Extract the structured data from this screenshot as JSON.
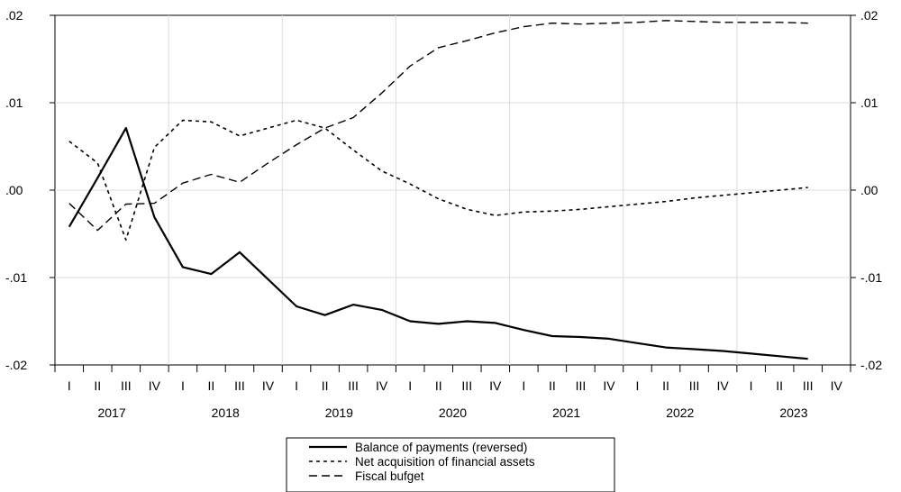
{
  "chart_data": {
    "type": "line",
    "title": "",
    "xlabel": "",
    "ylabel": "",
    "ylim": [
      -0.02,
      0.02
    ],
    "y_ticks": [
      ".02",
      ".01",
      ".00",
      "-.01",
      "-.02"
    ],
    "y_tick_values": [
      0.02,
      0.01,
      0.0,
      -0.01,
      -0.02
    ],
    "grid": true,
    "legend_position": "bottom-center",
    "quarter_labels": [
      "I",
      "II",
      "III",
      "IV",
      "I",
      "II",
      "III",
      "IV",
      "I",
      "II",
      "III",
      "IV",
      "I",
      "II",
      "III",
      "IV",
      "I",
      "II",
      "III",
      "IV",
      "I",
      "II",
      "III",
      "IV",
      "I",
      "II",
      "III",
      "IV"
    ],
    "years": [
      "2017",
      "2018",
      "2019",
      "2020",
      "2021",
      "2022",
      "2023"
    ],
    "series": [
      {
        "name": "Balance of payments (reversed)",
        "style": "solid",
        "color": "#000000",
        "values": [
          -0.0042,
          0.0014,
          0.0071,
          -0.0031,
          -0.0088,
          -0.0096,
          -0.0071,
          -0.0102,
          -0.0133,
          -0.0143,
          -0.0131,
          -0.0137,
          -0.015,
          -0.0153,
          -0.015,
          -0.0152,
          -0.016,
          -0.0167,
          -0.0168,
          -0.017,
          -0.0175,
          -0.018,
          -0.0182,
          -0.0184,
          -0.0187,
          -0.019,
          -0.0193
        ]
      },
      {
        "name": "Net acquisition of financial assets",
        "style": "dotted",
        "color": "#000000",
        "values": [
          0.0056,
          0.0031,
          -0.0057,
          0.0049,
          0.008,
          0.0078,
          0.0062,
          0.0071,
          0.008,
          0.0071,
          0.0046,
          0.0022,
          0.0007,
          -0.001,
          -0.0022,
          -0.0029,
          -0.0025,
          -0.0024,
          -0.0022,
          -0.0019,
          -0.0016,
          -0.0013,
          -0.0009,
          -0.0006,
          -0.0003,
          0.0,
          0.0003
        ]
      },
      {
        "name": "Fiscal bufget",
        "style": "dashed",
        "color": "#000000",
        "values": [
          -0.0015,
          -0.0046,
          -0.0016,
          -0.0015,
          0.0008,
          0.0018,
          0.0009,
          0.0031,
          0.0052,
          0.0071,
          0.0083,
          0.0111,
          0.0142,
          0.0163,
          0.0171,
          0.018,
          0.0187,
          0.0191,
          0.019,
          0.0191,
          0.0192,
          0.0194,
          0.0193,
          0.0192,
          0.0192,
          0.0192,
          0.0191
        ]
      }
    ]
  }
}
